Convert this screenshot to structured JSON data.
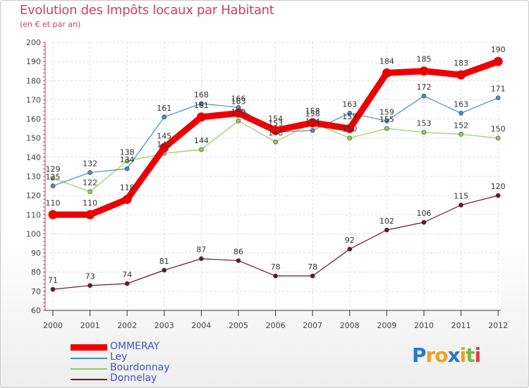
{
  "chart_data": {
    "type": "line",
    "title": "Evolution des Impôts locaux par Habitant",
    "subtitle": "(en € et par an)",
    "x": [
      "2000",
      "2001",
      "2002",
      "2003",
      "2004",
      "2005",
      "2006",
      "2007",
      "2008",
      "2009",
      "2010",
      "2011",
      "2012"
    ],
    "ylim": [
      60,
      200
    ],
    "yticks": [
      60,
      70,
      80,
      90,
      100,
      110,
      120,
      130,
      140,
      150,
      160,
      170,
      180,
      190,
      200
    ],
    "grid": true,
    "series": [
      {
        "name": "Donnelay",
        "color": "#6b1a22",
        "values": [
          71,
          73,
          74,
          81,
          87,
          86,
          78,
          78,
          92,
          102,
          106,
          115,
          120
        ],
        "labels": [
          "71",
          "73",
          "74",
          "81",
          "87",
          "86",
          "78",
          "78",
          "92",
          "102",
          "106",
          "115",
          "120"
        ]
      },
      {
        "name": "Bourdonnay",
        "color": "#8fd05a",
        "values": [
          129,
          122,
          138,
          142,
          144,
          159,
          148,
          158,
          150,
          155,
          153,
          152,
          150
        ],
        "labels": [
          "129",
          "122",
          "138",
          "142",
          "144",
          "159",
          "148",
          "158",
          "150",
          "155",
          "153",
          "152",
          "150"
        ]
      },
      {
        "name": "Ley",
        "color": "#4a8ec8",
        "values": [
          125,
          132,
          134,
          161,
          168,
          166,
          153,
          154,
          163,
          159,
          172,
          163,
          171
        ],
        "labels": [
          "125",
          "132",
          "134",
          "161",
          "168",
          "166",
          "153",
          "154",
          "163",
          "159",
          "172",
          "163",
          "171"
        ]
      },
      {
        "name": "OMMERAY",
        "color": "#ee0000",
        "values": [
          110,
          110,
          118,
          145,
          161,
          163,
          154,
          158,
          155,
          184,
          185,
          183,
          190
        ],
        "labels": [
          "110",
          "110",
          "118",
          "145",
          "161",
          "163",
          "154",
          "158",
          "155",
          "184",
          "185",
          "183",
          "190"
        ]
      }
    ],
    "legend": [
      "OMMERAY",
      "Ley",
      "Bourdonnay",
      "Donnelay"
    ],
    "legend_position": "bottom-left"
  },
  "logo": {
    "text": "Proxiti",
    "letters": [
      {
        "ch": "P",
        "color": "#2a78c8"
      },
      {
        "ch": "r",
        "color": "#f0a020"
      },
      {
        "ch": "o",
        "color": "#f0a020"
      },
      {
        "ch": "x",
        "color": "#2a78c8"
      },
      {
        "ch": "i",
        "color": "#f0a020"
      },
      {
        "ch": "t",
        "color": "#7ab83a"
      },
      {
        "ch": "i",
        "color": "#e0403a"
      }
    ]
  }
}
